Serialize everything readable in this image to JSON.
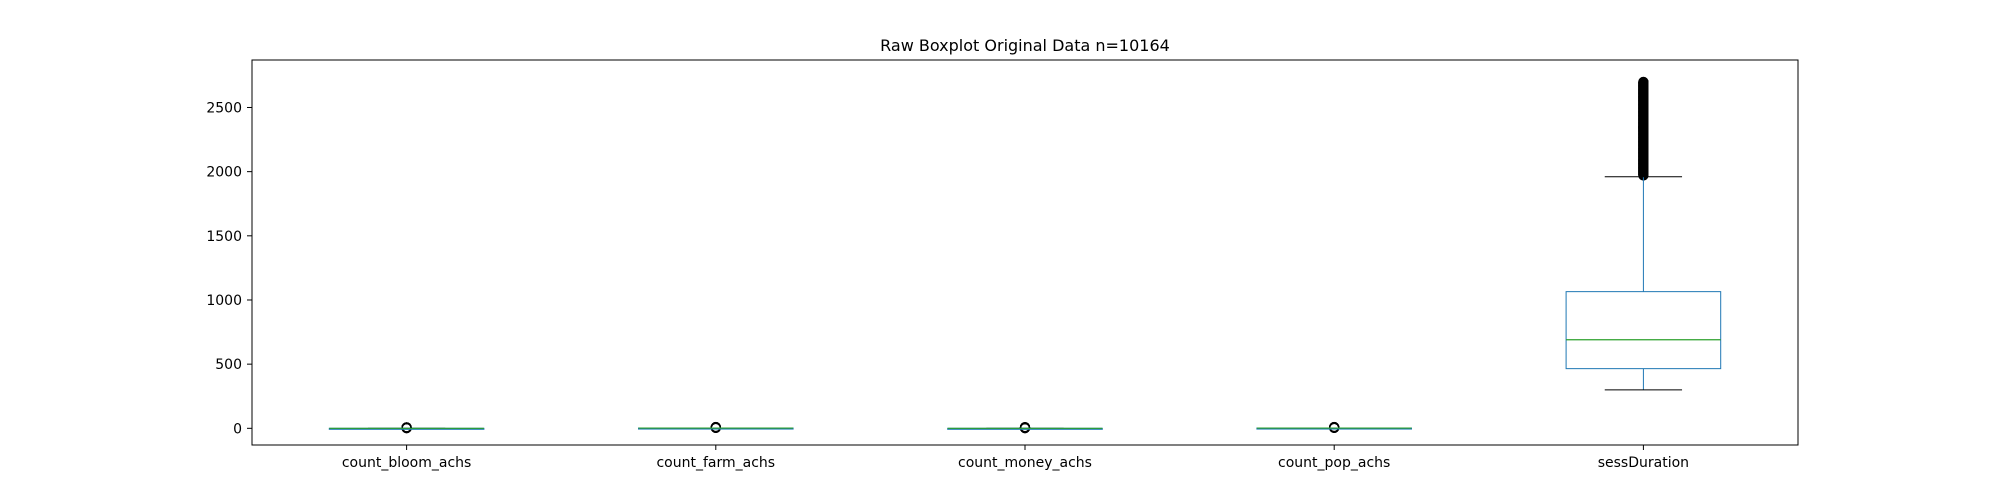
{
  "chart_data": {
    "type": "box",
    "title": "Raw Boxplot Original Data n=10164",
    "xlabel": "",
    "ylabel": "",
    "ylim": [
      -130,
      2870
    ],
    "yticks": [
      0,
      500,
      1000,
      1500,
      2000,
      2500
    ],
    "categories": [
      "count_bloom_achs",
      "count_farm_achs",
      "count_money_achs",
      "count_pop_achs",
      "sessDuration"
    ],
    "boxes": [
      {
        "min": 0,
        "q1": 0,
        "median": 0,
        "q3": 0,
        "max": 0,
        "outliers_min": 1,
        "outliers_max": 8
      },
      {
        "min": 0,
        "q1": 0,
        "median": 2,
        "q3": 2,
        "max": 2,
        "outliers_min": 3,
        "outliers_max": 10
      },
      {
        "min": 0,
        "q1": 0,
        "median": 0,
        "q3": 0,
        "max": 0,
        "outliers_min": 1,
        "outliers_max": 9
      },
      {
        "min": 0,
        "q1": 0,
        "median": 2,
        "q3": 2,
        "max": 2,
        "outliers_min": 3,
        "outliers_max": 10
      },
      {
        "min": 300,
        "q1": 465,
        "median": 690,
        "q3": 1065,
        "max": 1960,
        "outliers_min": 1970,
        "outliers_max": 2700
      }
    ],
    "grid": false,
    "colors": {
      "box": "#1f77b4",
      "median": "#2ca02c",
      "whisker": "#000000",
      "flier": "#000000"
    }
  }
}
